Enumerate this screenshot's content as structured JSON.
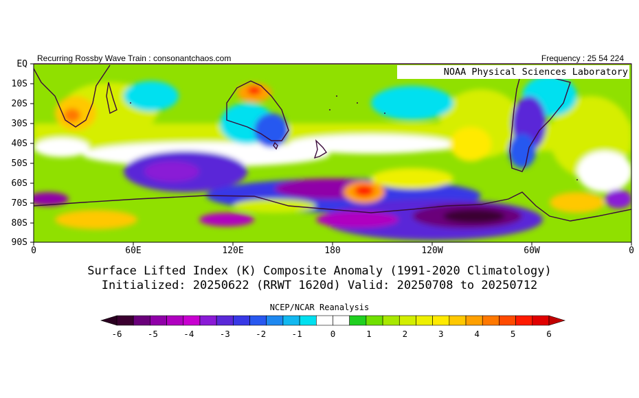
{
  "header": {
    "left_caption": "Recurring Rossby Wave Train : consonantchaos.com",
    "right_caption": "Frequency : 25 54 224",
    "lab_name": "NOAA Physical Sciences Laboratory"
  },
  "map": {
    "projection": "cylindrical equidistant",
    "lat_labels": [
      "EQ",
      "10S",
      "20S",
      "30S",
      "40S",
      "50S",
      "60S",
      "70S",
      "80S",
      "90S"
    ],
    "lon_labels": [
      "0",
      "60E",
      "120E",
      "180",
      "120W",
      "60W",
      "0"
    ],
    "lat_range": [
      0,
      -90
    ],
    "lon_range": [
      0,
      360
    ],
    "variable": "Surface Lifted Index (K) Composite Anomaly",
    "features": [
      {
        "region": "Southern Africa",
        "anomaly_sign": "positive"
      },
      {
        "region": "Northern Australia",
        "anomaly_sign": "positive"
      },
      {
        "region": "South Pacific near 190E, 65S",
        "anomaly_sign": "positive"
      },
      {
        "region": "Amundsen/Bellingshausen Sea",
        "anomaly_sign": "negative"
      },
      {
        "region": "Southern Indian Ocean 80E-100E, 50S",
        "anomaly_sign": "negative"
      },
      {
        "region": "Southern South America",
        "anomaly_sign": "negative"
      }
    ]
  },
  "titles": {
    "line1": "Surface Lifted Index (K) Composite Anomaly (1991-2020 Climatology)",
    "line2": "Initialized: 20250622 (RRWT 1620d) Valid: 20250708 to 20250712"
  },
  "colorbar": {
    "source_label": "NCEP/NCAR Reanalysis",
    "tick_labels": [
      "-6",
      "-5",
      "-4",
      "-3",
      "-2",
      "-1",
      "0",
      "1",
      "2",
      "3",
      "4",
      "5",
      "6"
    ],
    "colors": [
      "#3b0030",
      "#6a007a",
      "#9000a8",
      "#b000c0",
      "#c800d0",
      "#8a1ad6",
      "#5a28d8",
      "#3838e6",
      "#2858f0",
      "#1e88f0",
      "#12b8f0",
      "#00e0f0",
      "#ffffff",
      "#ffffff",
      "#20d020",
      "#70e000",
      "#a8e800",
      "#d2ee00",
      "#eef000",
      "#ffea00",
      "#ffc800",
      "#ffa000",
      "#ff7800",
      "#ff4a00",
      "#ff1a00",
      "#e00000"
    ]
  }
}
